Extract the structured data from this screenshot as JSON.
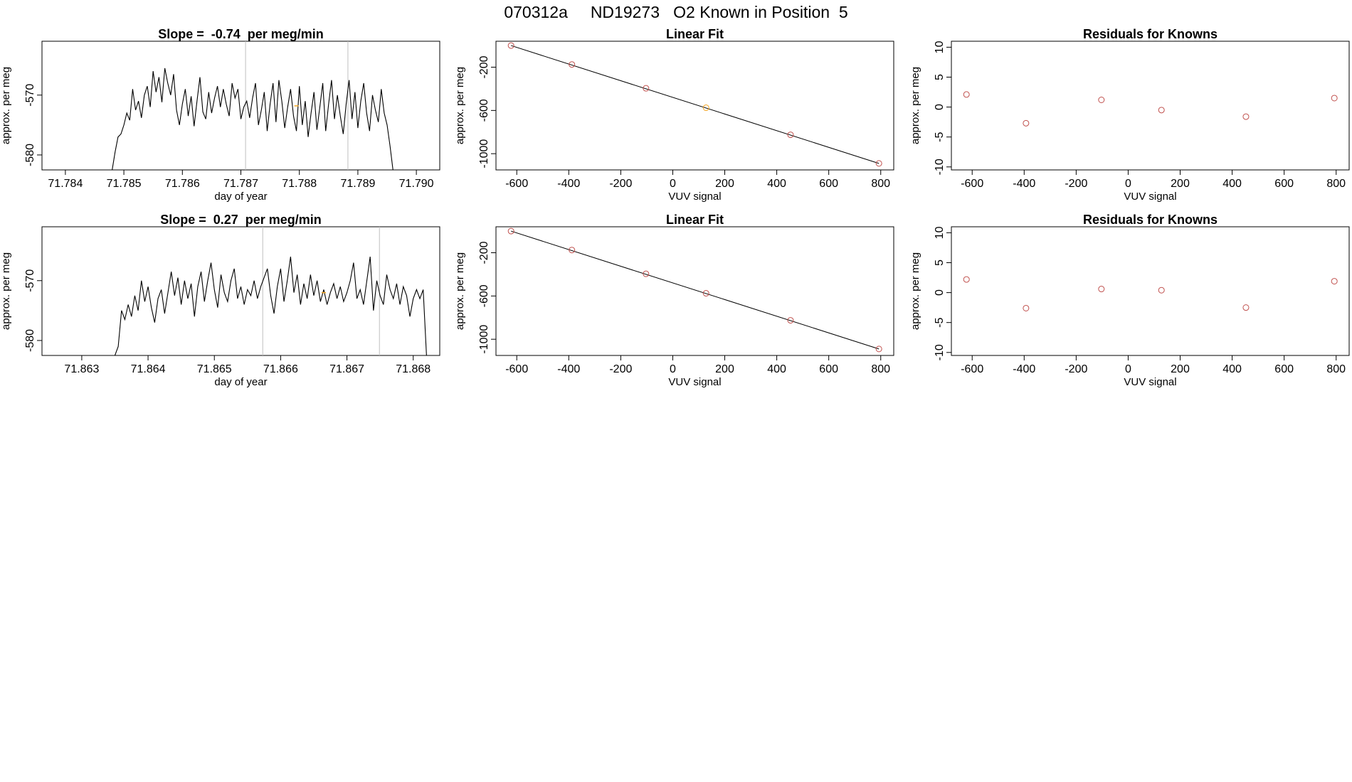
{
  "page": {
    "title": "070312a     ND19273   O2 Known in Position  5"
  },
  "chart_data": [
    {
      "type": "line",
      "title": "Slope =  -0.74  per meg/min",
      "xlabel": "day of year",
      "ylabel": "approx. per meg",
      "xlim": [
        71.7836,
        71.7904
      ],
      "ylim": [
        -582.5,
        -561.0
      ],
      "xticks": [
        "71.784",
        "71.785",
        "71.786",
        "71.787",
        "71.788",
        "71.789",
        "71.790"
      ],
      "xtick_values": [
        71.784,
        71.785,
        71.786,
        71.787,
        71.788,
        71.789,
        71.79
      ],
      "yticks": [
        "-580",
        "-570"
      ],
      "ytick_values": [
        -580,
        -570
      ],
      "line_color": "#000000",
      "vlines": [
        71.78708,
        71.78883
      ],
      "vline_color": "#bfbfbf",
      "marker": {
        "x": 71.78795,
        "y": -571.8,
        "color": "#f5a623"
      },
      "series": [
        {
          "x": [
            71.7848,
            71.78485,
            71.7849,
            71.78495,
            71.785,
            71.78505,
            71.7851,
            71.78515,
            71.7852,
            71.78525,
            71.7853,
            71.78535,
            71.7854,
            71.78545,
            71.7855,
            71.78555,
            71.7856,
            71.78565,
            71.7857,
            71.78575,
            71.7858,
            71.78585,
            71.7859,
            71.78595,
            71.786,
            71.78605,
            71.7861,
            71.78615,
            71.7862,
            71.78625,
            71.7863,
            71.78635,
            71.7864,
            71.78645,
            71.7865,
            71.78655,
            71.7866,
            71.78665,
            71.7867,
            71.78675,
            71.7868,
            71.78685,
            71.7869,
            71.78695,
            71.787,
            71.78705,
            71.7871,
            71.78715,
            71.7872,
            71.78725,
            71.7873,
            71.78735,
            71.7874,
            71.78745,
            71.7875,
            71.78755,
            71.7876,
            71.78765,
            71.7877,
            71.78775,
            71.7878,
            71.78785,
            71.7879,
            71.78795,
            71.788,
            71.78805,
            71.7881,
            71.78815,
            71.7882,
            71.78825,
            71.7883,
            71.78835,
            71.7884,
            71.78845,
            71.7885,
            71.78855,
            71.7886,
            71.78865,
            71.7887,
            71.78875,
            71.7888,
            71.78885,
            71.7889,
            71.78895,
            71.789,
            71.78905,
            71.7891,
            71.78915,
            71.7892,
            71.78925,
            71.7893,
            71.78935,
            71.7894,
            71.78945,
            71.7895,
            71.78955,
            71.7896
          ],
          "y": [
            -582.5,
            -579.5,
            -577.0,
            -576.5,
            -575.0,
            -573.0,
            -574.2,
            -569.0,
            -572.5,
            -571.0,
            -573.8,
            -570.0,
            -568.5,
            -572.0,
            -566.0,
            -569.5,
            -567.0,
            -571.2,
            -565.5,
            -568.0,
            -570.0,
            -566.5,
            -572.5,
            -575.0,
            -571.5,
            -569.0,
            -573.5,
            -570.2,
            -575.2,
            -571.0,
            -567.0,
            -572.8,
            -574.0,
            -569.5,
            -573.0,
            -570.5,
            -568.5,
            -572.0,
            -569.0,
            -571.5,
            -573.5,
            -568.0,
            -570.5,
            -569.0,
            -574.0,
            -572.0,
            -571.0,
            -573.8,
            -570.5,
            -568.0,
            -575.0,
            -572.5,
            -569.5,
            -576.0,
            -571.5,
            -568.0,
            -574.5,
            -567.5,
            -571.0,
            -575.5,
            -572.0,
            -569.0,
            -573.5,
            -576.0,
            -568.5,
            -575.0,
            -571.0,
            -577.0,
            -573.0,
            -569.5,
            -575.8,
            -572.0,
            -568.0,
            -576.0,
            -571.5,
            -567.5,
            -574.0,
            -570.0,
            -573.5,
            -576.5,
            -571.5,
            -567.5,
            -574.0,
            -569.5,
            -575.5,
            -571.0,
            -568.0,
            -573.0,
            -576.0,
            -570.0,
            -572.5,
            -574.5,
            -569.0,
            -573.0,
            -575.0,
            -578.5,
            -582.5
          ]
        }
      ]
    },
    {
      "type": "scatter",
      "title": "Linear Fit",
      "xlabel": "VUV signal",
      "ylabel": "approx. per meg",
      "xlim": [
        -680,
        850
      ],
      "ylim": [
        -1150,
        40
      ],
      "xticks": [
        "-600",
        "-400",
        "-200",
        "0",
        "200",
        "400",
        "600",
        "800"
      ],
      "xtick_values": [
        -600,
        -400,
        -200,
        0,
        200,
        400,
        600,
        800
      ],
      "yticks": [
        "-1000",
        "-600",
        "-200"
      ],
      "ytick_values": [
        -1000,
        -600,
        -200
      ],
      "fit_line": [
        [
          -622,
          0
        ],
        [
          793,
          -1090
        ]
      ],
      "points": [
        {
          "x": -622,
          "y": 0,
          "color": "#c0504d"
        },
        {
          "x": -388,
          "y": -175,
          "color": "#c0504d"
        },
        {
          "x": -103,
          "y": -395,
          "color": "#c0504d"
        },
        {
          "x": 128,
          "y": -575,
          "color": "#f5a623"
        },
        {
          "x": 453,
          "y": -825,
          "color": "#c0504d"
        },
        {
          "x": 793,
          "y": -1090,
          "color": "#c0504d"
        }
      ]
    },
    {
      "type": "scatter",
      "title": "Residuals for Knowns",
      "xlabel": "VUV signal",
      "ylabel": "approx. per meg",
      "xlim": [
        -680,
        850
      ],
      "ylim": [
        -10.5,
        11
      ],
      "xticks": [
        "-600",
        "-400",
        "-200",
        "0",
        "200",
        "400",
        "600",
        "800"
      ],
      "xtick_values": [
        -600,
        -400,
        -200,
        0,
        200,
        400,
        600,
        800
      ],
      "yticks": [
        "-10",
        "-5",
        "0",
        "5",
        "10"
      ],
      "ytick_values": [
        -10,
        -5,
        0,
        5,
        10
      ],
      "points": [
        {
          "x": -622,
          "y": 2.1,
          "color": "#c0504d"
        },
        {
          "x": -393,
          "y": -2.7,
          "color": "#c0504d"
        },
        {
          "x": -103,
          "y": 1.2,
          "color": "#c0504d"
        },
        {
          "x": 128,
          "y": -0.5,
          "color": "#c0504d"
        },
        {
          "x": 453,
          "y": -1.6,
          "color": "#c0504d"
        },
        {
          "x": 793,
          "y": 1.5,
          "color": "#c0504d"
        }
      ]
    },
    {
      "type": "line",
      "title": "Slope =  0.27  per meg/min",
      "xlabel": "day of year",
      "ylabel": "approx. per meg",
      "xlim": [
        71.8624,
        71.8684
      ],
      "ylim": [
        -582.5,
        -561.0
      ],
      "xticks": [
        "71.863",
        "71.864",
        "71.865",
        "71.866",
        "71.867",
        "71.868"
      ],
      "xtick_values": [
        71.863,
        71.864,
        71.865,
        71.866,
        71.867,
        71.868
      ],
      "yticks": [
        "-580",
        "-570"
      ],
      "ytick_values": [
        -580,
        -570
      ],
      "line_color": "#000000",
      "vlines": [
        71.86573,
        71.86749
      ],
      "vline_color": "#bfbfbf",
      "marker": {
        "x": 71.86665,
        "y": -572.0,
        "color": "#f5a623"
      },
      "series": [
        {
          "x": [
            71.8635,
            71.86355,
            71.8636,
            71.86365,
            71.8637,
            71.86375,
            71.8638,
            71.86385,
            71.8639,
            71.86395,
            71.864,
            71.86405,
            71.8641,
            71.86415,
            71.8642,
            71.86425,
            71.8643,
            71.86435,
            71.8644,
            71.86445,
            71.8645,
            71.86455,
            71.8646,
            71.86465,
            71.8647,
            71.86475,
            71.8648,
            71.86485,
            71.8649,
            71.86495,
            71.865,
            71.86505,
            71.8651,
            71.86515,
            71.8652,
            71.86525,
            71.8653,
            71.86535,
            71.8654,
            71.86545,
            71.8655,
            71.86555,
            71.8656,
            71.86565,
            71.8657,
            71.86575,
            71.8658,
            71.86585,
            71.8659,
            71.86595,
            71.866,
            71.86605,
            71.8661,
            71.86615,
            71.8662,
            71.86625,
            71.8663,
            71.86635,
            71.8664,
            71.86645,
            71.8665,
            71.86655,
            71.8666,
            71.86665,
            71.8667,
            71.86675,
            71.8668,
            71.86685,
            71.8669,
            71.86695,
            71.867,
            71.86705,
            71.8671,
            71.86715,
            71.8672,
            71.86725,
            71.8673,
            71.86735,
            71.8674,
            71.86745,
            71.8675,
            71.86755,
            71.8676,
            71.86765,
            71.8677,
            71.86775,
            71.8678,
            71.86785,
            71.8679,
            71.86795,
            71.868,
            71.86805,
            71.8681,
            71.86815,
            71.8682
          ],
          "y": [
            -582.5,
            -581.0,
            -575.0,
            -576.5,
            -574.0,
            -576.0,
            -572.5,
            -575.0,
            -570.0,
            -573.5,
            -571.0,
            -574.5,
            -577.0,
            -573.0,
            -571.5,
            -575.5,
            -572.0,
            -568.5,
            -572.5,
            -569.5,
            -574.0,
            -570.0,
            -573.0,
            -570.5,
            -576.0,
            -571.0,
            -568.5,
            -573.5,
            -570.0,
            -567.0,
            -571.5,
            -574.5,
            -569.0,
            -572.0,
            -573.5,
            -570.0,
            -568.0,
            -573.0,
            -571.0,
            -574.0,
            -571.5,
            -572.5,
            -570.0,
            -573.0,
            -571.0,
            -569.5,
            -568.0,
            -572.5,
            -575.5,
            -571.0,
            -568.0,
            -573.5,
            -570.0,
            -566.0,
            -572.0,
            -569.0,
            -574.0,
            -570.5,
            -573.0,
            -569.0,
            -572.5,
            -570.0,
            -573.5,
            -571.5,
            -574.0,
            -572.0,
            -570.5,
            -573.0,
            -571.0,
            -573.5,
            -572.0,
            -570.0,
            -567.0,
            -573.0,
            -571.5,
            -574.0,
            -570.0,
            -566.0,
            -575.0,
            -570.0,
            -572.5,
            -574.0,
            -569.0,
            -571.5,
            -573.0,
            -570.5,
            -574.0,
            -571.0,
            -572.5,
            -576.0,
            -573.0,
            -571.5,
            -573.0,
            -571.5,
            -582.5
          ]
        }
      ]
    },
    {
      "type": "scatter",
      "title": "Linear Fit",
      "xlabel": "VUV signal",
      "ylabel": "approx. per meg",
      "xlim": [
        -680,
        850
      ],
      "ylim": [
        -1150,
        40
      ],
      "xticks": [
        "-600",
        "-400",
        "-200",
        "0",
        "200",
        "400",
        "600",
        "800"
      ],
      "xtick_values": [
        -600,
        -400,
        -200,
        0,
        200,
        400,
        600,
        800
      ],
      "yticks": [
        "-1000",
        "-600",
        "-200"
      ],
      "ytick_values": [
        -1000,
        -600,
        -200
      ],
      "fit_line": [
        [
          -622,
          0
        ],
        [
          793,
          -1090
        ]
      ],
      "points": [
        {
          "x": -622,
          "y": 0,
          "color": "#c0504d"
        },
        {
          "x": -388,
          "y": -175,
          "color": "#c0504d"
        },
        {
          "x": -103,
          "y": -395,
          "color": "#c0504d"
        },
        {
          "x": 128,
          "y": -575,
          "color": "#c0504d"
        },
        {
          "x": 453,
          "y": -825,
          "color": "#c0504d"
        },
        {
          "x": 793,
          "y": -1090,
          "color": "#c0504d"
        }
      ]
    },
    {
      "type": "scatter",
      "title": "Residuals for Knowns",
      "xlabel": "VUV signal",
      "ylabel": "approx. per meg",
      "xlim": [
        -680,
        850
      ],
      "ylim": [
        -10.5,
        11
      ],
      "xticks": [
        "-600",
        "-400",
        "-200",
        "0",
        "200",
        "400",
        "600",
        "800"
      ],
      "xtick_values": [
        -600,
        -400,
        -200,
        0,
        200,
        400,
        600,
        800
      ],
      "yticks": [
        "-10",
        "-5",
        "0",
        "5",
        "10"
      ],
      "ytick_values": [
        -10,
        -5,
        0,
        5,
        10
      ],
      "points": [
        {
          "x": -622,
          "y": 2.2,
          "color": "#c0504d"
        },
        {
          "x": -393,
          "y": -2.6,
          "color": "#c0504d"
        },
        {
          "x": -103,
          "y": 0.6,
          "color": "#c0504d"
        },
        {
          "x": 128,
          "y": 0.4,
          "color": "#c0504d"
        },
        {
          "x": 453,
          "y": -2.5,
          "color": "#c0504d"
        },
        {
          "x": 793,
          "y": 1.9,
          "color": "#c0504d"
        }
      ]
    }
  ]
}
